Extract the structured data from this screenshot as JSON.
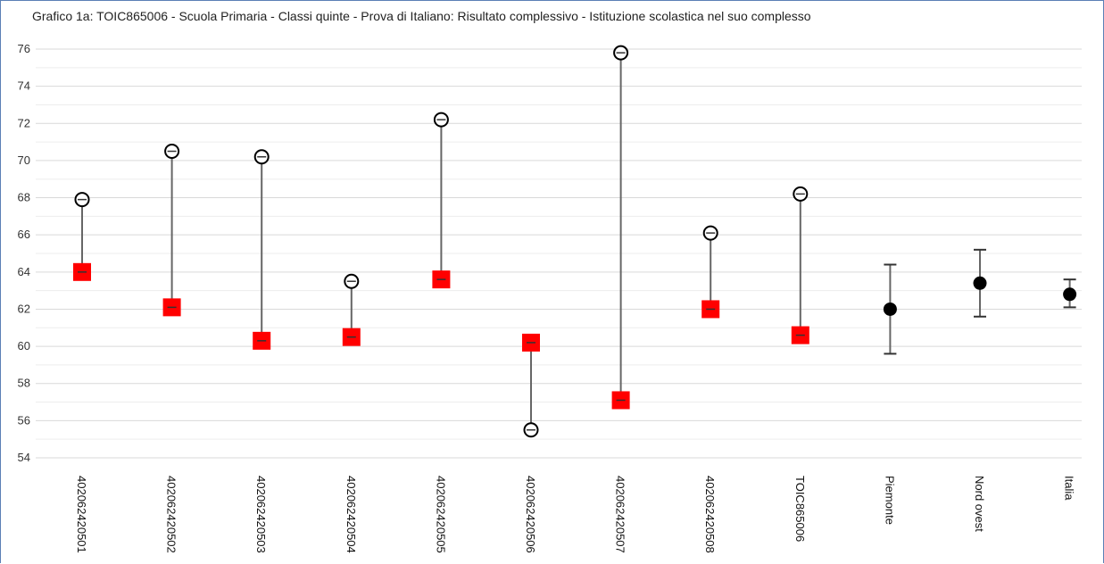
{
  "title": "Grafico 1a: TOIC865006 - Scuola Primaria - Classi quinte - Prova di Italiano: Risultato complessivo - Istituzione scolastica nel suo complesso",
  "colors": {
    "grid": "#d9d9d9",
    "line": "#666666",
    "square": "#ff0000",
    "circle": "#000000"
  },
  "chart_data": {
    "type": "scatter",
    "ylim": [
      54,
      76
    ],
    "yticks": [
      54,
      56,
      58,
      60,
      62,
      64,
      66,
      68,
      70,
      72,
      74,
      76
    ],
    "categories": [
      "402062420501",
      "402062420502",
      "402062420503",
      "402062420504",
      "402062420505",
      "402062420506",
      "402062420507",
      "402062420508",
      "TOIC865006",
      "Piemonte",
      "Nord ovest",
      "Italia"
    ],
    "points": [
      {
        "category": "402062420501",
        "square": 64.0,
        "circle": 67.9
      },
      {
        "category": "402062420502",
        "square": 62.1,
        "circle": 70.5
      },
      {
        "category": "402062420503",
        "square": 60.3,
        "circle": 70.2
      },
      {
        "category": "402062420504",
        "square": 60.5,
        "circle": 63.5
      },
      {
        "category": "402062420505",
        "square": 63.6,
        "circle": 72.2
      },
      {
        "category": "402062420506",
        "square": 60.2,
        "circle": 55.5
      },
      {
        "category": "402062420507",
        "square": 57.1,
        "circle": 75.8
      },
      {
        "category": "402062420508",
        "square": 62.0,
        "circle": 66.1
      },
      {
        "category": "TOIC865006",
        "square": 60.6,
        "circle": 68.2
      },
      {
        "category": "Piemonte",
        "mean": 62.0,
        "low": 59.6,
        "high": 64.4
      },
      {
        "category": "Nord ovest",
        "mean": 63.4,
        "low": 61.6,
        "high": 65.2
      },
      {
        "category": "Italia",
        "mean": 62.8,
        "low": 62.1,
        "high": 63.6
      }
    ]
  }
}
